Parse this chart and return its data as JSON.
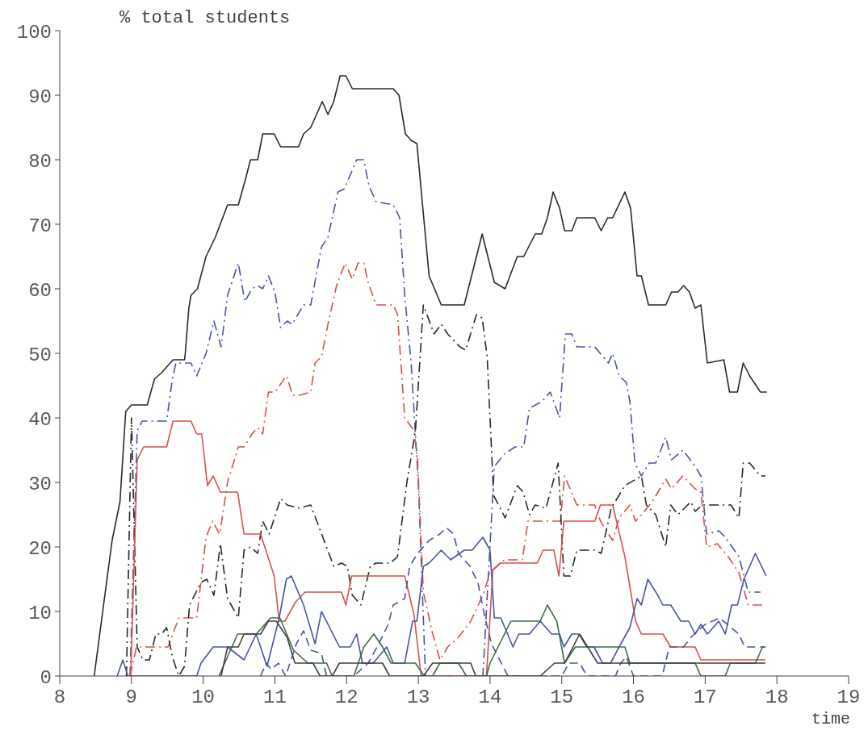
{
  "chart_data": {
    "type": "line",
    "ylabel": "% total students",
    "xlabel": "time",
    "xlim": [
      8,
      19
    ],
    "xticks": [
      8,
      9,
      10,
      11,
      12,
      13,
      14,
      15,
      16,
      17,
      18,
      19
    ],
    "ylim": [
      0,
      100
    ],
    "yticks": [
      0,
      10,
      20,
      30,
      40,
      50,
      60,
      70,
      80,
      90,
      100
    ],
    "grid": false,
    "marker": "none",
    "series": [
      {
        "color": "#2a2a2a",
        "line_style": "solid",
        "x": [
          8.48,
          8.73,
          8.84,
          8.92,
          9.0,
          9.22,
          9.32,
          9.42,
          9.58,
          9.74,
          9.75,
          9.8,
          9.83,
          9.92,
          10.04,
          10.17,
          10.34,
          10.49,
          10.59,
          10.66,
          10.76,
          10.83,
          10.99,
          11.08,
          11.33,
          11.4,
          11.5,
          11.66,
          11.74,
          11.82,
          11.91,
          11.99,
          12.08,
          12.65,
          12.73,
          12.82,
          12.9,
          12.98,
          13.15,
          13.32,
          13.64,
          13.89,
          14.06,
          14.21,
          14.38,
          14.47,
          14.63,
          14.72,
          14.8,
          14.88,
          14.97,
          15.04,
          15.14,
          15.21,
          15.46,
          15.55,
          15.64,
          15.71,
          15.88,
          15.96,
          16.05,
          16.11,
          16.21,
          16.45,
          16.53,
          16.62,
          16.7,
          16.78,
          16.86,
          16.94,
          17.03,
          17.26,
          17.34,
          17.45,
          17.53,
          17.62,
          17.77,
          17.86
        ],
        "values": [
          0,
          21,
          27,
          41,
          42,
          42,
          46,
          47,
          49,
          49,
          50,
          57,
          59,
          60,
          65,
          68,
          73,
          73,
          77,
          80,
          80,
          84,
          84,
          82,
          82,
          84,
          85,
          89,
          87,
          89,
          93,
          93,
          91,
          91,
          90,
          84,
          83,
          82.5,
          62,
          57.5,
          57.5,
          68.5,
          61,
          60,
          65,
          65,
          68.5,
          68.5,
          71,
          75,
          72.5,
          69,
          69,
          71,
          71,
          69,
          71,
          71,
          75,
          72.5,
          62,
          62,
          57.5,
          57.5,
          59.5,
          59.5,
          60.5,
          59.5,
          57,
          57.5,
          48.5,
          49,
          44,
          44,
          48.5,
          46.5,
          44,
          44
        ]
      },
      {
        "color": "#4a55a0",
        "line_style": "dashdot",
        "x": [
          8.98,
          9.08,
          9.15,
          9.49,
          9.57,
          9.62,
          9.83,
          9.91,
          10.04,
          10.15,
          10.25,
          10.34,
          10.49,
          10.58,
          10.68,
          10.76,
          10.83,
          10.91,
          11.0,
          11.08,
          11.17,
          11.24,
          11.4,
          11.5,
          11.65,
          11.74,
          11.88,
          11.97,
          12.14,
          12.24,
          12.31,
          12.41,
          12.65,
          12.74,
          12.81,
          12.9,
          13.0,
          13.1,
          13.9,
          14.06,
          14.21,
          14.35,
          14.47,
          14.55,
          14.72,
          14.84,
          14.97,
          15.05,
          15.14,
          15.21,
          15.46,
          15.65,
          15.71,
          15.8,
          15.9,
          15.95,
          16.02,
          16.11,
          16.22,
          16.31,
          16.45,
          16.53,
          16.69,
          16.86,
          16.94,
          17.02,
          17.19,
          17.28,
          17.47,
          17.6,
          17.77
        ],
        "values": [
          0,
          38,
          39.5,
          39.5,
          46,
          48.5,
          48.5,
          46.5,
          50,
          55,
          51,
          59,
          64,
          58,
          60,
          60.5,
          60,
          62,
          59.5,
          54,
          55,
          54.5,
          57.5,
          57.5,
          66.5,
          68,
          75,
          75.5,
          80,
          80,
          76,
          73.5,
          73,
          71,
          59,
          48.5,
          30,
          0,
          0,
          32.5,
          34.5,
          35.5,
          35.5,
          41.5,
          42.5,
          44,
          40,
          53,
          53,
          51,
          51,
          48.5,
          50,
          46.5,
          45.5,
          42.5,
          33,
          31,
          33,
          33,
          37,
          33.5,
          35,
          32.5,
          31,
          22,
          22.5,
          21.5,
          18.5,
          13,
          13
        ]
      },
      {
        "color": "#d8504a",
        "line_style": "dashdot",
        "x": [
          8.98,
          9.07,
          9.51,
          9.66,
          9.91,
          10.04,
          10.13,
          10.23,
          10.34,
          10.49,
          10.57,
          10.68,
          10.76,
          10.83,
          10.91,
          11.0,
          11.16,
          11.25,
          11.34,
          11.5,
          11.56,
          11.65,
          11.74,
          11.86,
          11.98,
          12.08,
          12.16,
          12.24,
          12.3,
          12.41,
          12.65,
          12.71,
          12.77,
          12.81,
          12.94,
          12.99,
          13.07,
          13.19,
          13.3,
          13.41,
          13.56,
          13.73,
          13.9,
          14.0,
          14.2,
          14.45,
          14.53,
          14.98,
          15.04,
          15.21,
          15.46,
          15.54,
          15.71,
          15.8,
          15.95,
          16.03,
          16.11,
          16.26,
          16.45,
          16.53,
          16.69,
          16.86,
          16.94,
          17.02,
          17.17,
          17.32,
          17.47,
          17.6,
          17.84
        ],
        "values": [
          0,
          4.5,
          4.5,
          9,
          9,
          21.5,
          24,
          22,
          30,
          35.5,
          35.5,
          37.5,
          38.5,
          37.5,
          44,
          44,
          46.5,
          43.5,
          43.5,
          44,
          48.5,
          49.5,
          54.5,
          60.5,
          64,
          61.5,
          64,
          64,
          61,
          57.5,
          57.5,
          56,
          46.5,
          40,
          38,
          33.5,
          13,
          7,
          2.5,
          4.5,
          6,
          8.5,
          12.5,
          16,
          18,
          18,
          24,
          24,
          31,
          26.5,
          26.5,
          24,
          21,
          24.5,
          26.5,
          24,
          25,
          27,
          30.5,
          29,
          31,
          29,
          28.5,
          20,
          20.5,
          18.5,
          16,
          11,
          11
        ]
      },
      {
        "color": "#2a2a2a",
        "line_style": "dashdot",
        "x": [
          8.93,
          9.0,
          9.08,
          9.16,
          9.25,
          9.34,
          9.42,
          9.49,
          9.57,
          9.66,
          9.74,
          9.81,
          9.97,
          10.05,
          10.15,
          10.24,
          10.34,
          10.49,
          10.57,
          10.66,
          10.76,
          10.83,
          10.92,
          11.08,
          11.17,
          11.34,
          11.5,
          11.82,
          11.93,
          12.01,
          12.08,
          12.2,
          12.33,
          12.41,
          12.61,
          12.71,
          12.84,
          12.96,
          13.07,
          13.22,
          13.32,
          13.41,
          13.58,
          13.66,
          13.81,
          13.89,
          13.96,
          14.05,
          14.21,
          14.38,
          14.46,
          14.55,
          14.63,
          14.78,
          14.95,
          15.03,
          15.12,
          15.21,
          15.46,
          15.55,
          15.69,
          15.88,
          16.11,
          16.18,
          16.31,
          16.45,
          16.52,
          16.62,
          16.8,
          16.86,
          16.96,
          17.36,
          17.47,
          17.53,
          17.62,
          17.77,
          17.84
        ],
        "values": [
          0,
          40,
          4.5,
          2.5,
          2.5,
          6.5,
          6.5,
          7.5,
          3,
          0,
          1.5,
          11,
          14.5,
          15,
          12.5,
          20.5,
          12,
          9,
          19.5,
          20,
          19,
          24,
          22,
          27.5,
          26.5,
          26,
          26.5,
          17,
          17.5,
          17,
          12.5,
          11,
          17,
          17.5,
          17.5,
          18.5,
          30,
          38,
          57.5,
          53,
          54.5,
          53,
          51,
          50.5,
          56,
          55.5,
          49.5,
          28,
          24.5,
          29.5,
          28.5,
          25,
          26.5,
          26,
          33,
          15.5,
          15.5,
          19.5,
          19.5,
          19,
          26,
          29.5,
          31,
          26.5,
          25,
          20,
          26.5,
          25,
          27,
          25.5,
          26.5,
          26.5,
          24.5,
          33,
          33,
          31,
          31
        ]
      },
      {
        "color": "#d8504a",
        "line_style": "solid",
        "x": [
          8.99,
          9.08,
          9.17,
          9.49,
          9.58,
          9.83,
          9.91,
          9.98,
          10.06,
          10.14,
          10.24,
          10.48,
          10.57,
          10.8,
          10.99,
          11.06,
          11.14,
          11.29,
          11.42,
          11.93,
          11.99,
          12.07,
          12.81,
          12.94,
          13.04,
          13.95,
          14.04,
          14.14,
          14.21,
          14.66,
          14.74,
          14.89,
          14.96,
          15.03,
          15.46,
          15.54,
          15.71,
          15.88,
          16.03,
          16.11,
          16.41,
          16.52,
          16.86,
          16.94,
          17.84
        ],
        "values": [
          0,
          33.5,
          35.5,
          35.5,
          39.5,
          39.5,
          37.5,
          37.5,
          29.5,
          31,
          28.5,
          28.5,
          22,
          22,
          15.5,
          8.5,
          8.5,
          11.5,
          13,
          13,
          11,
          15.5,
          15.5,
          9.5,
          0,
          0,
          16.5,
          17.5,
          17.5,
          17.5,
          19.5,
          19.5,
          15.5,
          24,
          24,
          26.5,
          26.5,
          18.5,
          8.5,
          6.5,
          6.5,
          4.5,
          4.5,
          2.5,
          2.5
        ]
      },
      {
        "color": "#4a55a0",
        "line_style": "solid",
        "x": [
          8.8,
          8.88,
          8.95,
          9.91,
          9.97,
          10.14,
          10.34,
          10.57,
          10.74,
          10.89,
          11.06,
          11.16,
          11.23,
          11.4,
          11.56,
          11.65,
          11.9,
          12.05,
          12.14,
          12.22,
          12.37,
          12.56,
          12.65,
          12.81,
          12.92,
          12.98,
          13.07,
          13.15,
          13.32,
          13.45,
          13.64,
          13.75,
          13.9,
          14.0,
          14.06,
          14.15,
          14.32,
          14.4,
          14.55,
          14.7,
          14.86,
          14.97,
          15.03,
          15.14,
          15.24,
          15.35,
          15.45,
          15.57,
          15.68,
          15.8,
          15.95,
          16.05,
          16.11,
          16.2,
          16.34,
          16.41,
          16.52,
          16.66,
          16.77,
          16.86,
          16.94,
          17.03,
          17.19,
          17.28,
          17.37,
          17.45,
          17.54,
          17.7,
          17.85
        ],
        "values": [
          0,
          2.5,
          0,
          0,
          2,
          4.5,
          4.5,
          2.5,
          6.5,
          1.5,
          9,
          15,
          15.5,
          11,
          5,
          10,
          4.5,
          4.5,
          6.5,
          2,
          2,
          4.5,
          2,
          2,
          8.5,
          8.5,
          17,
          17.5,
          19.5,
          18,
          19.5,
          19.5,
          21.5,
          19.5,
          9,
          9,
          4.5,
          6.5,
          6.5,
          8.5,
          6.5,
          6.5,
          4.5,
          6.5,
          6.5,
          4.5,
          4.5,
          2,
          2,
          4.5,
          7.5,
          12,
          11,
          15,
          12.5,
          11,
          11,
          8.5,
          8.5,
          6.5,
          8,
          6.5,
          8.5,
          6.5,
          11,
          11,
          15,
          19,
          15.5
        ]
      },
      {
        "color": "#4a55a0",
        "line_style": "dashed",
        "x": [
          10.8,
          10.88,
          10.95,
          11.05,
          11.15,
          11.3,
          11.4,
          11.5,
          11.65,
          11.72,
          12.1,
          12.3,
          12.45,
          12.58,
          12.65,
          12.81,
          12.88,
          12.99,
          13.15,
          13.3,
          13.39,
          13.49,
          13.56,
          13.72,
          13.83,
          13.93,
          14.02,
          14.18,
          14.25,
          15.0,
          15.1,
          15.25,
          15.35,
          15.75,
          15.82,
          15.9,
          16.0,
          16.4,
          16.5,
          16.7,
          16.8,
          17.0,
          17.2,
          17.47,
          17.55,
          17.84
        ],
        "values": [
          0,
          2,
          1,
          2,
          0,
          5,
          7,
          4,
          3.5,
          0,
          0,
          2,
          5,
          8,
          11,
          12,
          17,
          19,
          21,
          22,
          23,
          22,
          19,
          17,
          14.5,
          9,
          5,
          1.5,
          0,
          0,
          2,
          2,
          0,
          0,
          2,
          3,
          0,
          0,
          4.5,
          4.5,
          6,
          8,
          9,
          6.5,
          4.5,
          4.5
        ]
      },
      {
        "color": "#3c6e46",
        "line_style": "solid",
        "x": [
          10.22,
          10.3,
          10.48,
          10.74,
          10.94,
          11.07,
          11.26,
          11.46,
          11.72,
          11.8,
          12.1,
          12.24,
          12.38,
          12.5,
          12.62,
          12.96,
          13.08,
          13.2,
          13.3,
          13.56,
          13.67,
          13.95,
          14.0,
          14.29,
          14.7,
          14.8,
          14.93,
          15.04,
          15.19,
          15.88,
          15.95,
          16.86,
          16.94,
          17.28,
          17.35,
          17.7,
          17.8,
          17.84
        ],
        "values": [
          0,
          2,
          6.5,
          6.5,
          9,
          9,
          4,
          2,
          2,
          0,
          0,
          4.5,
          6.5,
          4.5,
          2,
          2,
          0,
          0,
          2,
          2,
          0,
          0,
          2,
          8.5,
          8.5,
          11,
          8.5,
          2,
          4.5,
          4.5,
          2,
          2,
          0,
          0,
          2,
          2,
          4.5,
          4.5
        ]
      },
      {
        "color": "#404040",
        "line_style": "solid",
        "x": [
          10.25,
          10.34,
          10.49,
          10.57,
          10.8,
          10.91,
          11.02,
          11.17,
          11.28,
          11.53,
          11.63,
          11.8,
          11.9,
          12.5,
          12.6,
          13.07,
          13.2,
          13.73,
          13.8,
          14.7,
          14.9,
          15.04,
          15.25,
          15.5,
          16.0,
          17.84
        ],
        "values": [
          0,
          4.5,
          4.5,
          6.5,
          6.5,
          8.5,
          8.5,
          6,
          2,
          2,
          0,
          0,
          2,
          2,
          0,
          0,
          2,
          2,
          0,
          0,
          2,
          2,
          6.5,
          2,
          2,
          2
        ]
      }
    ]
  }
}
